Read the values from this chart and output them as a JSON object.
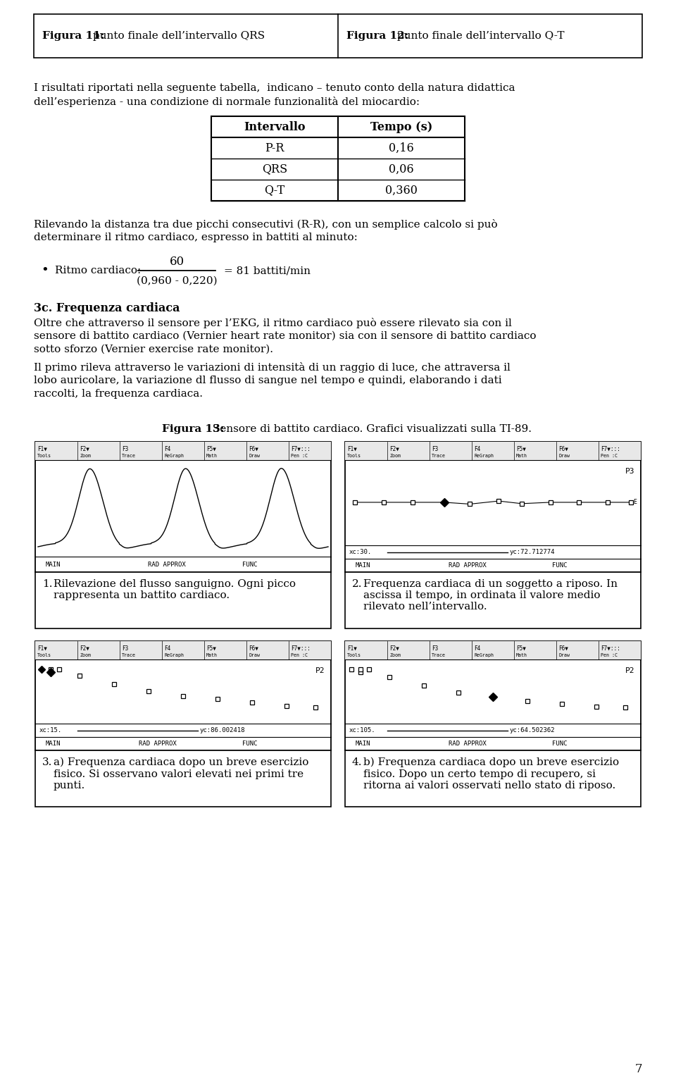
{
  "bg_color": "#ffffff",
  "page_number": "7",
  "header_col1_bold": "Figura 11:",
  "header_col1_rest": " punto finale dell’intervallo QRS",
  "header_col2_bold": "Figura 12:",
  "header_col2_rest": " punto finale dell’intervallo Q-T",
  "para1_l1": "I risultati riportati nella seguente tabella,  indicano – tenuto conto della natura didattica",
  "para1_l2": "dell’esperienza - una condizione di normale funzionalità del miocardio:",
  "table_headers": [
    "Intervallo",
    "Tempo (s)"
  ],
  "table_rows": [
    [
      "P-R",
      "0,16"
    ],
    [
      "QRS",
      "0,06"
    ],
    [
      "Q-T",
      "0,360"
    ]
  ],
  "para2_l1": "Rilevando la distanza tra due picchi consecutivi (R-R), con un semplice calcolo si può",
  "para2_l2": "determinare il ritmo cardiaco, espresso in battiti al minuto:",
  "bullet_label": "Ritmo cardiaco:",
  "bullet_numerator": "60",
  "bullet_denominator": "(0,960 - 0,220)",
  "bullet_result": "= 81 battiti/min",
  "section_title": "3c. Frequenza cardiaca",
  "para3_l1": "Oltre che attraverso il sensore per l’EKG, il ritmo cardiaco può essere rilevato sia con il",
  "para3_l2": "sensore di battito cardiaco (Vernier heart rate monitor) sia con il sensore di battito cardiaco",
  "para3_l3": "sotto sforzo (Vernier exercise rate monitor).",
  "para4_l1": "Il primo rileva attraverso le variazioni di intensità di un raggio di luce, che attraversa il",
  "para4_l2": "lobo auricolare, la variazione dl flusso di sangue nel tempo e quindi, elaborando i dati",
  "para4_l3": "raccolti, la frequenza cardiaca.",
  "fig13_bold": "Figura 13:",
  "fig13_rest": " Sensore di battito cardiaco. Grafici visualizzati sulla TI-89.",
  "caption1_num": "1.",
  "caption1_text": "Rilevazione del flusso sanguigno. Ogni picco\nrappresenta un battito cardiaco.",
  "caption2_num": "2.",
  "caption2_text": "Frequenza cardiaca di un soggetto a riposo. In\nascissa il tempo, in ordinata il valore medio\nrilevato nell’intervallo.",
  "caption3_num": "3.",
  "caption3_text": "a) Frequenza cardiaca dopo un breve esercizio\nfisico. Si osservano valori elevati nei primi tre\npunti.",
  "caption4_num": "4.",
  "caption4_text": "b) Frequenza cardiaca dopo un breve esercizio\nfisico. Dopo un certo tempo di recupero, si\nritorna ai valori osservati nello stato di riposo.",
  "toolbar_top": [
    "F1▼",
    "F2▼",
    "F3",
    "F4",
    "F5▼",
    "F6▼",
    "F7▼∷∷∷"
  ],
  "toolbar_bot": [
    "Tools",
    "Zoom",
    "Trace",
    "ReGraph",
    "Math",
    "Draw",
    "Pen :C"
  ]
}
